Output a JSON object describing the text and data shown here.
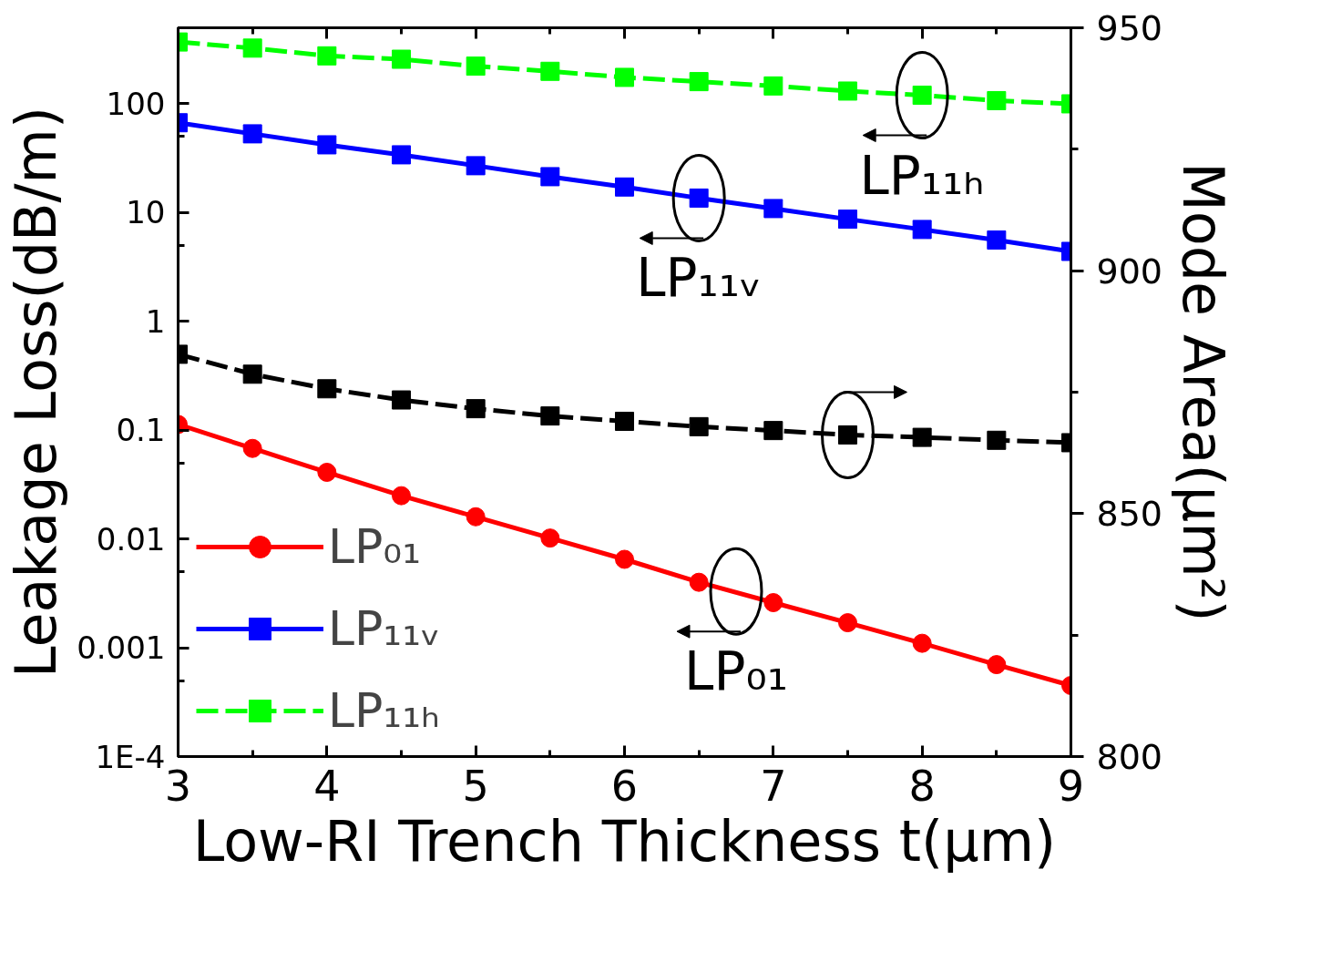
{
  "chart_data": {
    "type": "line",
    "xlabel": "Low-RI Trench Thickness t(μm)",
    "ylabel": "Leakage Loss(dB/m)",
    "y2label": "Mode Area(μm²)",
    "x": [
      3,
      3.5,
      4,
      4.5,
      5,
      5.5,
      6,
      6.5,
      7,
      7.5,
      8,
      8.5,
      9
    ],
    "series": [
      {
        "name": "LP₀₁",
        "color": "#ff0000",
        "marker": "circle",
        "line_style": "solid",
        "values": [
          0.113,
          0.068,
          0.041,
          0.025,
          0.016,
          0.0102,
          0.0065,
          0.004,
          0.0026,
          0.0017,
          0.0011,
          0.0007,
          0.00045
        ]
      },
      {
        "name": "LP₁₁ᵥ",
        "color": "#0000ff",
        "marker": "square",
        "line_style": "solid",
        "values": [
          67,
          53,
          42,
          34,
          27,
          21.4,
          17.2,
          13.6,
          10.9,
          8.7,
          7.0,
          5.6,
          4.4
        ]
      },
      {
        "name": "LP₁₁ₕ",
        "color": "#00ff00",
        "marker": "square",
        "line_style": "dashed",
        "values": [
          370,
          325,
          276,
          257,
          222,
          199,
          175,
          160,
          146,
          131,
          120,
          107,
          100
        ]
      },
      {
        "color": "#000000",
        "marker": "square",
        "line_style": "dashed",
        "axis": "y2",
        "values": [
          882.8,
          878.7,
          875.7,
          873.4,
          871.6,
          870.1,
          869.0,
          867.9,
          867.1,
          866.2,
          865.7,
          865.1,
          864.6
        ]
      }
    ],
    "log": "y",
    "xlim": [
      3,
      9
    ],
    "xticks": [
      3,
      {
        "value": 3.5,
        "label": null
      },
      4,
      {
        "value": 4.5,
        "label": null
      },
      5,
      {
        "value": 5.5,
        "label": null
      },
      6,
      {
        "value": 6.5,
        "label": null
      },
      7,
      {
        "value": 7.5,
        "label": null
      },
      8,
      {
        "value": 8.5,
        "label": null
      },
      9
    ],
    "ylim": [
      0.0001,
      500
    ],
    "yticks": [
      {
        "value": 0.0001,
        "label": "1E-4"
      },
      {
        "value": 0.0005,
        "label": null
      },
      0.001,
      {
        "value": 0.005,
        "label": null
      },
      0.01,
      {
        "value": 0.05,
        "label": null
      },
      0.1,
      {
        "value": 0.5,
        "label": null
      },
      1,
      {
        "value": 5,
        "label": null
      },
      10,
      {
        "value": 50,
        "label": null
      },
      100
    ],
    "y2lim": [
      800,
      950
    ],
    "y2ticks": [
      800,
      {
        "value": 825,
        "label": null
      },
      850,
      {
        "value": 875,
        "label": null
      },
      900,
      {
        "value": 925,
        "label": null
      },
      950
    ],
    "legend": "bottom left",
    "grid": false,
    "annotations": [
      {
        "text": "LP₁₁ₕ",
        "x": 8,
        "y": 120
      },
      {
        "text": "LP₁₁ᵥ",
        "x": 6.5,
        "y": 13.6
      },
      {
        "text": "LP₀₁",
        "x": 6.75,
        "y": 0.0033
      }
    ]
  }
}
